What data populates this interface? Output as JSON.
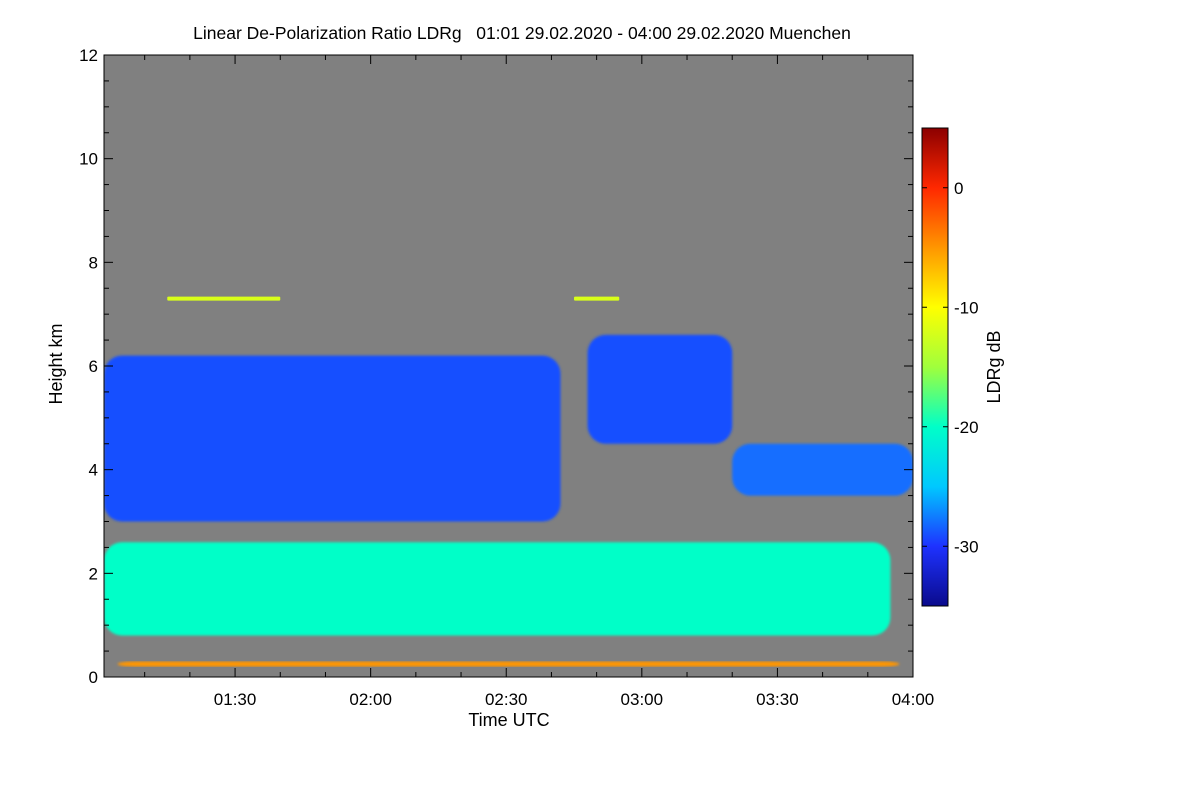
{
  "chart_data": {
    "type": "heatmap",
    "title": "Linear De-Polarization Ratio LDRg   01:01 29.02.2020 - 04:00 29.02.2020 Muenchen",
    "xlabel": "Time UTC",
    "ylabel": "Height km",
    "x_start": "01:01",
    "x_end": "04:00",
    "xlim": [
      "01:01",
      "04:00"
    ],
    "x_ticks": [
      "01:30",
      "02:00",
      "02:30",
      "03:00",
      "03:30",
      "04:00"
    ],
    "ylim": [
      0,
      12
    ],
    "y_ticks": [
      0,
      2,
      4,
      6,
      8,
      10,
      12
    ],
    "colorbar": {
      "label": "LDRg dB",
      "range": [
        -35,
        5
      ],
      "ticks": [
        -30,
        -20,
        -10,
        0
      ],
      "colormap": [
        "#0a0a8c",
        "#1e32ff",
        "#00c8ff",
        "#00ffc8",
        "#a0ff3c",
        "#ffff00",
        "#ff9600",
        "#ff2800",
        "#8c0000"
      ]
    },
    "no_data_color": "#808080",
    "grid": false,
    "features": [
      {
        "name": "upper cloud field",
        "x": [
          "01:01",
          "02:42"
        ],
        "y": [
          3.0,
          6.2
        ],
        "ldr_db": -29
      },
      {
        "name": "upper cloud field",
        "x": [
          "02:48",
          "03:20"
        ],
        "y": [
          4.5,
          6.6
        ],
        "ldr_db": -29
      },
      {
        "name": "upper cloud field",
        "x": [
          "03:20",
          "04:00"
        ],
        "y": [
          3.5,
          4.5
        ],
        "ldr_db": -28
      },
      {
        "name": "mid-level layer",
        "x": [
          "01:01",
          "03:55"
        ],
        "y": [
          0.8,
          2.6
        ],
        "ldr_db": -20
      },
      {
        "name": "thin layer",
        "x": [
          "01:15",
          "01:40"
        ],
        "y": [
          7.3,
          7.3
        ],
        "ldr_db": -12
      },
      {
        "name": "thin layer",
        "x": [
          "02:45",
          "02:55"
        ],
        "y": [
          7.3,
          7.3
        ],
        "ldr_db": -12
      },
      {
        "name": "surface band",
        "x": [
          "01:04",
          "03:57"
        ],
        "y": [
          0.2,
          0.3
        ],
        "ldr_db": -5
      }
    ]
  }
}
